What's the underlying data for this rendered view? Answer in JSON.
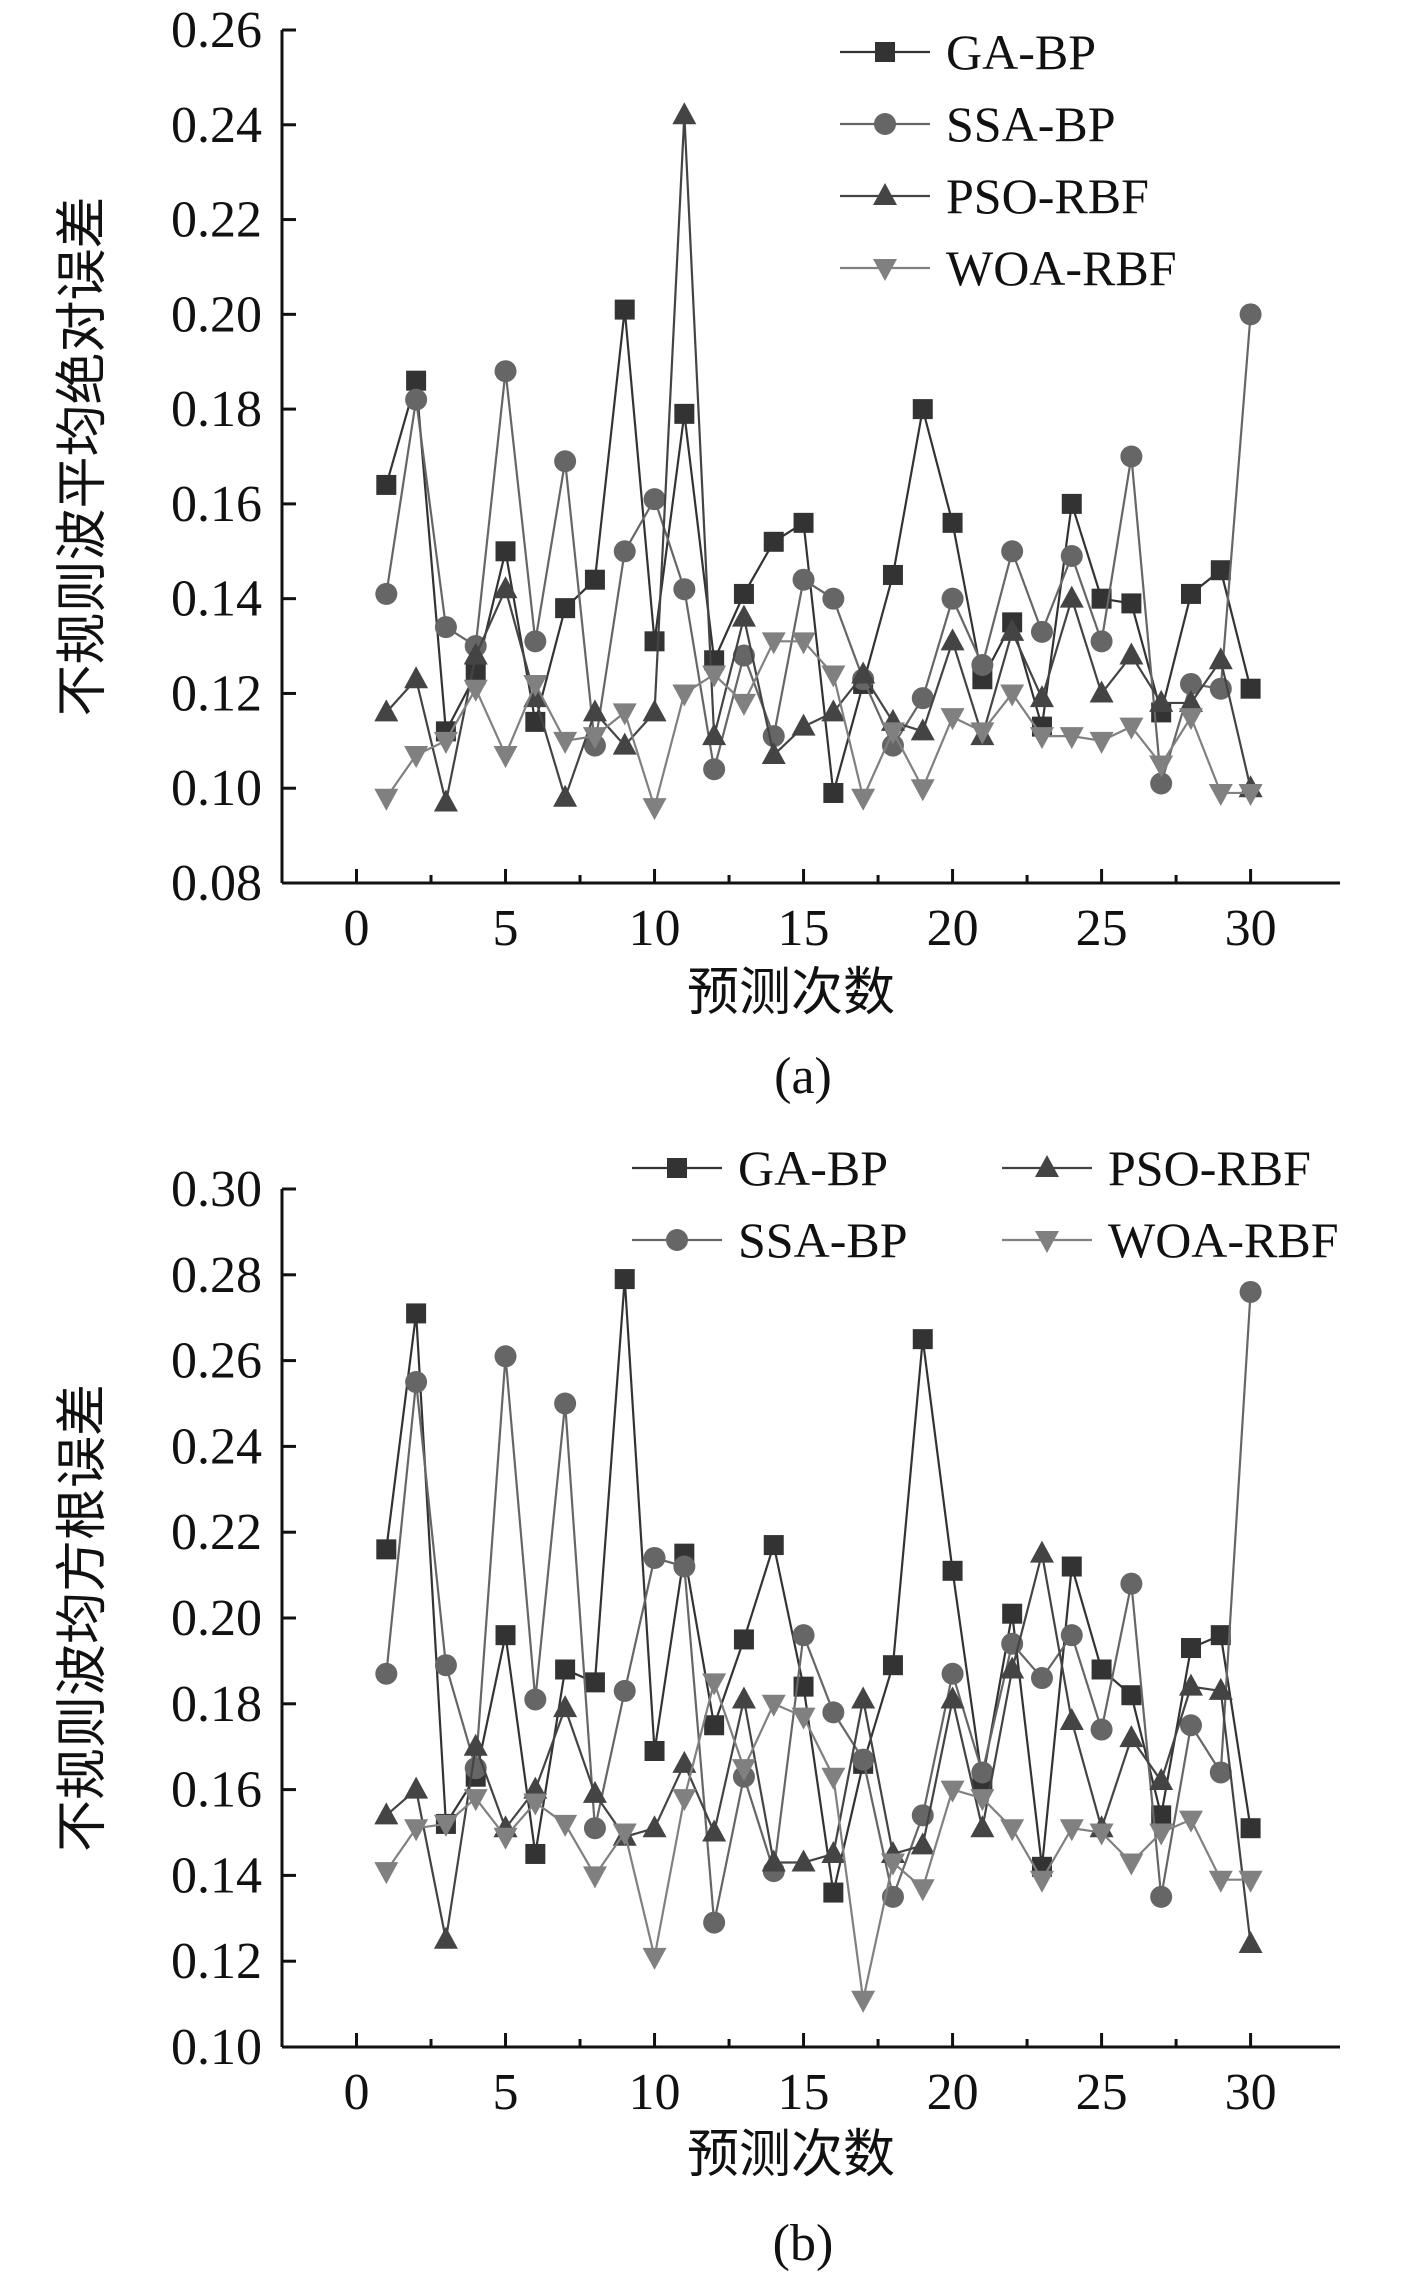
{
  "colors": {
    "GA-BP": "#333333",
    "SSA-BP": "#666666",
    "PSO-RBF": "#444444",
    "WOA-RBF": "#808080",
    "axis": "#111111"
  },
  "chart_data": [
    {
      "type": "line",
      "caption": "(a)",
      "xlabel": "预测次数",
      "ylabel": "不规则波平均绝对误差",
      "xlim": [
        -2.5,
        33
      ],
      "ylim": [
        0.08,
        0.26
      ],
      "xticks": [
        0,
        5,
        10,
        15,
        20,
        25,
        30
      ],
      "xtick_labels": [
        "0",
        "5",
        "10",
        "15",
        "20",
        "25",
        "30"
      ],
      "yticks": [
        0.08,
        0.1,
        0.12,
        0.14,
        0.16,
        0.18,
        0.2,
        0.22,
        0.24,
        0.26
      ],
      "ytick_labels": [
        "0.08",
        "0.10",
        "0.12",
        "0.14",
        "0.16",
        "0.18",
        "0.20",
        "0.22",
        "0.24",
        "0.26"
      ],
      "legend_layout": "single-column",
      "legend_placement": "top-right",
      "x": [
        1,
        2,
        3,
        4,
        5,
        6,
        7,
        8,
        9,
        10,
        11,
        12,
        13,
        14,
        15,
        16,
        17,
        18,
        19,
        20,
        21,
        22,
        23,
        24,
        25,
        26,
        27,
        28,
        29,
        30
      ],
      "series": [
        {
          "name": "GA-BP",
          "marker": "square",
          "values": [
            0.164,
            0.186,
            0.112,
            0.124,
            0.15,
            0.114,
            0.138,
            0.144,
            0.201,
            0.131,
            0.179,
            0.127,
            0.141,
            0.152,
            0.156,
            0.099,
            0.122,
            0.145,
            0.18,
            0.156,
            0.123,
            0.135,
            0.113,
            0.16,
            0.14,
            0.139,
            0.116,
            0.141,
            0.146,
            0.121
          ]
        },
        {
          "name": "SSA-BP",
          "marker": "circle",
          "values": [
            0.141,
            0.182,
            0.134,
            0.13,
            0.188,
            0.131,
            0.169,
            0.109,
            0.15,
            0.161,
            0.142,
            0.104,
            0.128,
            0.111,
            0.144,
            0.14,
            0.123,
            0.109,
            0.119,
            0.14,
            0.126,
            0.15,
            0.133,
            0.149,
            0.131,
            0.17,
            0.101,
            0.122,
            0.121,
            0.2
          ]
        },
        {
          "name": "PSO-RBF",
          "marker": "triangle-up",
          "values": [
            0.116,
            0.123,
            0.097,
            0.128,
            0.142,
            0.119,
            0.098,
            0.116,
            0.109,
            0.116,
            0.242,
            0.111,
            0.136,
            0.107,
            0.113,
            0.116,
            0.124,
            0.114,
            0.112,
            0.131,
            0.111,
            0.133,
            0.119,
            0.14,
            0.12,
            0.128,
            0.118,
            0.118,
            0.127,
            0.1
          ]
        },
        {
          "name": "WOA-RBF",
          "marker": "triangle-down",
          "values": [
            0.098,
            0.107,
            0.11,
            0.121,
            0.107,
            0.122,
            0.11,
            0.111,
            0.116,
            0.096,
            0.12,
            0.124,
            0.118,
            0.131,
            0.131,
            0.124,
            0.098,
            0.112,
            0.1,
            0.115,
            0.112,
            0.12,
            0.111,
            0.111,
            0.11,
            0.113,
            0.105,
            0.115,
            0.099,
            0.099
          ]
        }
      ]
    },
    {
      "type": "line",
      "caption": "(b)",
      "xlabel": "预测次数",
      "ylabel": "不规则波均方根误差",
      "xlim": [
        -2.5,
        33
      ],
      "ylim": [
        0.1,
        0.3
      ],
      "xticks": [
        0,
        5,
        10,
        15,
        20,
        25,
        30
      ],
      "xtick_labels": [
        "0",
        "5",
        "10",
        "15",
        "20",
        "25",
        "30"
      ],
      "yticks": [
        0.1,
        0.12,
        0.14,
        0.16,
        0.18,
        0.2,
        0.22,
        0.24,
        0.26,
        0.28,
        0.3
      ],
      "ytick_labels": [
        "0.10",
        "0.12",
        "0.14",
        "0.16",
        "0.18",
        "0.20",
        "0.22",
        "0.24",
        "0.26",
        "0.28",
        "0.30"
      ],
      "legend_layout": "two-column",
      "legend_placement": "top-right",
      "x": [
        1,
        2,
        3,
        4,
        5,
        6,
        7,
        8,
        9,
        10,
        11,
        12,
        13,
        14,
        15,
        16,
        17,
        18,
        19,
        20,
        21,
        22,
        23,
        24,
        25,
        26,
        27,
        28,
        29,
        30
      ],
      "series": [
        {
          "name": "GA-BP",
          "marker": "square",
          "values": [
            0.216,
            0.271,
            0.152,
            0.163,
            0.196,
            0.145,
            0.188,
            0.185,
            0.279,
            0.169,
            0.215,
            0.175,
            0.195,
            0.217,
            0.184,
            0.136,
            0.166,
            0.189,
            0.265,
            0.211,
            0.162,
            0.201,
            0.142,
            0.212,
            0.188,
            0.182,
            0.154,
            0.193,
            0.196,
            0.151
          ]
        },
        {
          "name": "SSA-BP",
          "marker": "circle",
          "values": [
            0.187,
            0.255,
            0.189,
            0.165,
            0.261,
            0.181,
            0.25,
            0.151,
            0.183,
            0.214,
            0.212,
            0.129,
            0.163,
            0.141,
            0.196,
            0.178,
            0.167,
            0.135,
            0.154,
            0.187,
            0.164,
            0.194,
            0.186,
            0.196,
            0.174,
            0.208,
            0.135,
            0.175,
            0.164,
            0.276
          ]
        },
        {
          "name": "PSO-RBF",
          "marker": "triangle-up",
          "values": [
            0.154,
            0.16,
            0.125,
            0.17,
            0.151,
            0.16,
            0.179,
            0.159,
            0.149,
            0.151,
            0.166,
            0.15,
            0.181,
            0.143,
            0.143,
            0.145,
            0.181,
            0.145,
            0.147,
            0.181,
            0.151,
            0.188,
            0.215,
            0.176,
            0.151,
            0.172,
            0.162,
            0.184,
            0.183,
            0.124
          ]
        },
        {
          "name": "WOA-RBF",
          "marker": "triangle-down",
          "values": [
            0.141,
            0.151,
            0.152,
            0.158,
            0.149,
            0.157,
            0.152,
            0.14,
            0.15,
            0.121,
            0.158,
            0.185,
            0.165,
            0.18,
            0.177,
            0.163,
            0.111,
            0.143,
            0.137,
            0.16,
            0.158,
            0.151,
            0.139,
            0.151,
            0.15,
            0.143,
            0.15,
            0.153,
            0.139,
            0.139
          ]
        }
      ]
    }
  ]
}
